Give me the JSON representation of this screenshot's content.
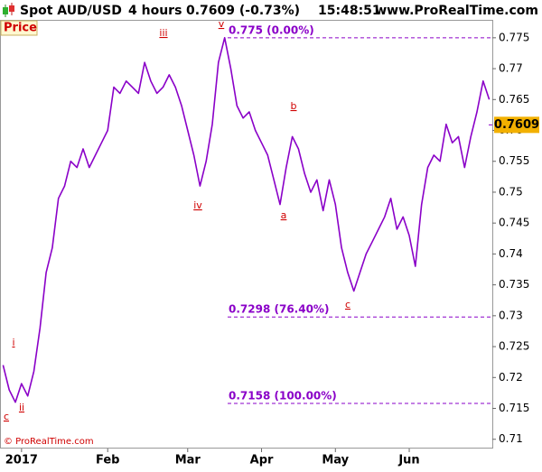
{
  "chart_data": {
    "type": "line",
    "header": {
      "symbol": "Spot AUD/USD",
      "interval": "4 hours",
      "quote": "0.7609 (-0.73%)",
      "time": "15:48:51",
      "site": "www.ProRealTime.com"
    },
    "copyright": "© ProRealTime.com",
    "categories": [
      null,
      null,
      null,
      "2017",
      null,
      null,
      null,
      null,
      null,
      null,
      null,
      null,
      null,
      null,
      null,
      null,
      null,
      "Feb",
      null,
      null,
      null,
      null,
      null,
      null,
      null,
      null,
      null,
      null,
      null,
      null,
      "Mar",
      null,
      null,
      null,
      null,
      null,
      null,
      null,
      null,
      null,
      null,
      null,
      "Apr",
      null,
      null,
      null,
      null,
      null,
      null,
      null,
      null,
      null,
      null,
      null,
      "May",
      null,
      null,
      null,
      null,
      null,
      null,
      null,
      null,
      null,
      null,
      null,
      "Jun",
      null,
      null,
      null,
      null,
      null,
      null,
      null,
      null,
      null,
      null,
      null,
      null,
      null
    ],
    "series": [
      {
        "name": "Price",
        "color": "#8a00c8",
        "values": [
          0.722,
          0.718,
          0.716,
          0.719,
          0.717,
          0.721,
          0.728,
          0.737,
          0.741,
          0.749,
          0.751,
          0.755,
          0.754,
          0.757,
          0.754,
          0.756,
          0.758,
          0.76,
          0.767,
          0.766,
          0.768,
          0.767,
          0.766,
          0.771,
          0.768,
          0.766,
          0.767,
          0.769,
          0.767,
          0.764,
          0.76,
          0.756,
          0.751,
          0.755,
          0.761,
          0.771,
          0.775,
          0.77,
          0.764,
          0.762,
          0.763,
          0.76,
          0.758,
          0.756,
          0.752,
          0.748,
          0.754,
          0.759,
          0.757,
          0.753,
          0.75,
          0.752,
          0.747,
          0.752,
          0.748,
          0.741,
          0.737,
          0.734,
          0.737,
          0.74,
          0.742,
          0.744,
          0.746,
          0.749,
          0.744,
          0.746,
          0.743,
          0.738,
          0.748,
          0.754,
          0.756,
          0.755,
          0.761,
          0.758,
          0.759,
          0.754,
          0.759,
          0.763,
          0.768,
          0.765
        ]
      }
    ],
    "last_price": 0.7609,
    "ylim": [
      0.7085,
      0.7779
    ],
    "yticks": [
      0.71,
      0.715,
      0.72,
      0.725,
      0.73,
      0.735,
      0.74,
      0.745,
      0.75,
      0.755,
      0.76,
      0.765,
      0.77,
      0.775
    ],
    "levels": [
      {
        "value": 0.775,
        "label": "0.775 (0.00%)"
      },
      {
        "value": 0.7298,
        "label": "0.7298 (76.40%)"
      },
      {
        "value": 0.7158,
        "label": "0.7158 (100.00%)"
      }
    ],
    "waves": [
      "c",
      "i",
      "ii",
      "iii",
      "iv",
      "v",
      "a",
      "b",
      "c"
    ]
  }
}
